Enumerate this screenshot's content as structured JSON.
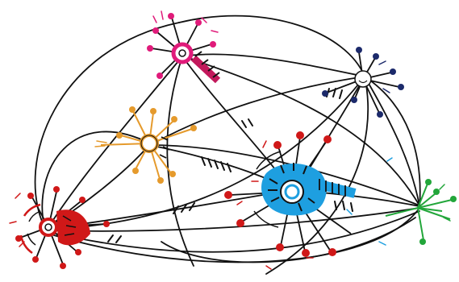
{
  "illustration": {
    "colors": {
      "background": "#ffffff",
      "ink": "#111111",
      "pink": "#e01b7a",
      "magenta": "#c2185b",
      "navy": "#1c2a6b",
      "orange": "#e59a2c",
      "red": "#d01818",
      "blue": "#1e9fe0",
      "green": "#22a63a"
    },
    "hubs": [
      {
        "id": "pink",
        "icon": "pink-hub-icon"
      },
      {
        "id": "navy",
        "icon": "navy-hub-icon"
      },
      {
        "id": "orange",
        "icon": "orange-hub-icon"
      },
      {
        "id": "red",
        "icon": "red-hub-icon"
      },
      {
        "id": "blue",
        "icon": "blue-hub-icon"
      },
      {
        "id": "green",
        "icon": "green-hub-icon"
      }
    ]
  }
}
